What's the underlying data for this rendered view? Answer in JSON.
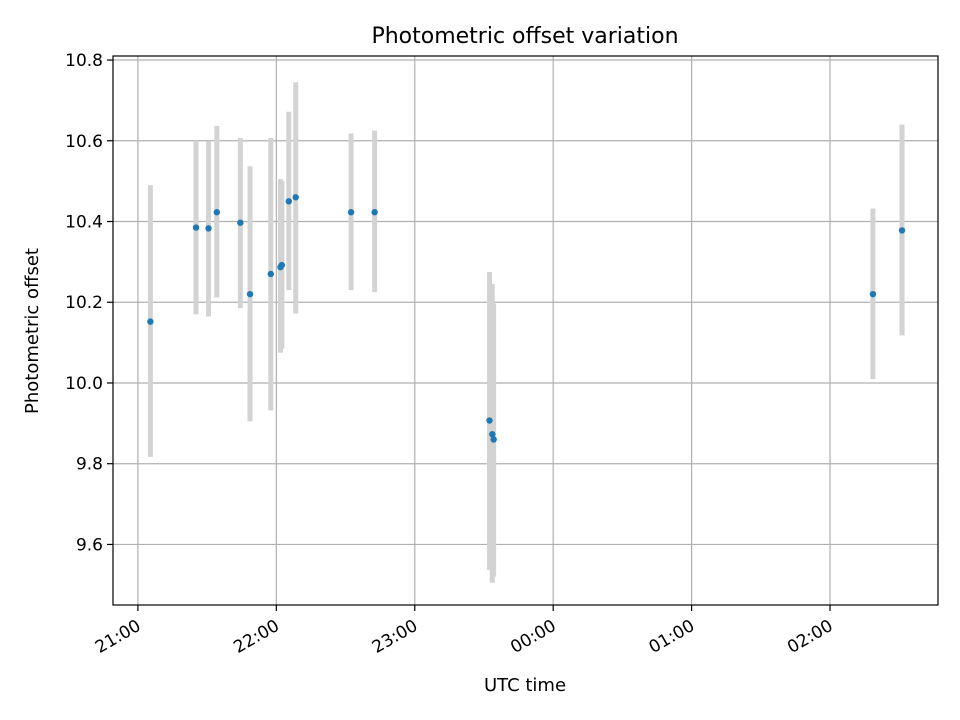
{
  "chart_data": {
    "type": "scatter",
    "title": "Photometric offset variation",
    "xlabel": "UTC time",
    "ylabel": "Photometric offset",
    "grid": true,
    "x_unit": "hours since 21:00 UTC",
    "xlim": [
      -0.18,
      5.78
    ],
    "ylim": [
      9.45,
      10.81
    ],
    "x_ticks": [
      {
        "value": 0,
        "label": "21:00"
      },
      {
        "value": 1,
        "label": "22:00"
      },
      {
        "value": 2,
        "label": "23:00"
      },
      {
        "value": 3,
        "label": "00:00"
      },
      {
        "value": 4,
        "label": "01:00"
      },
      {
        "value": 5,
        "label": "02:00"
      }
    ],
    "y_ticks": [
      {
        "value": 9.6,
        "label": "9.6"
      },
      {
        "value": 9.8,
        "label": "9.8"
      },
      {
        "value": 10.0,
        "label": "10.0"
      },
      {
        "value": 10.2,
        "label": "10.2"
      },
      {
        "value": 10.4,
        "label": "10.4"
      },
      {
        "value": 10.6,
        "label": "10.6"
      },
      {
        "value": 10.8,
        "label": "10.8"
      }
    ],
    "marker_color": "#1f77b4",
    "errorbar_color": "#d3d3d3",
    "series": [
      {
        "name": "offset",
        "points": [
          {
            "x": 0.09,
            "y": 10.152,
            "ylo": 9.817,
            "yhi": 10.49
          },
          {
            "x": 0.42,
            "y": 10.385,
            "ylo": 10.17,
            "yhi": 10.6
          },
          {
            "x": 0.51,
            "y": 10.383,
            "ylo": 10.165,
            "yhi": 10.598
          },
          {
            "x": 0.57,
            "y": 10.423,
            "ylo": 10.212,
            "yhi": 10.637
          },
          {
            "x": 0.74,
            "y": 10.397,
            "ylo": 10.185,
            "yhi": 10.607
          },
          {
            "x": 0.81,
            "y": 10.22,
            "ylo": 9.905,
            "yhi": 10.537
          },
          {
            "x": 0.96,
            "y": 10.27,
            "ylo": 9.932,
            "yhi": 10.607
          },
          {
            "x": 1.03,
            "y": 10.287,
            "ylo": 10.075,
            "yhi": 10.505
          },
          {
            "x": 1.04,
            "y": 10.292,
            "ylo": 10.085,
            "yhi": 10.5
          },
          {
            "x": 1.09,
            "y": 10.45,
            "ylo": 10.23,
            "yhi": 10.672
          },
          {
            "x": 1.14,
            "y": 10.46,
            "ylo": 10.172,
            "yhi": 10.745
          },
          {
            "x": 1.54,
            "y": 10.423,
            "ylo": 10.23,
            "yhi": 10.618
          },
          {
            "x": 1.71,
            "y": 10.423,
            "ylo": 10.225,
            "yhi": 10.625
          },
          {
            "x": 2.54,
            "y": 9.907,
            "ylo": 9.537,
            "yhi": 10.275
          },
          {
            "x": 2.56,
            "y": 9.873,
            "ylo": 9.505,
            "yhi": 10.245
          },
          {
            "x": 2.57,
            "y": 9.86,
            "ylo": 9.52,
            "yhi": 10.197
          },
          {
            "x": 5.31,
            "y": 10.22,
            "ylo": 10.01,
            "yhi": 10.432
          },
          {
            "x": 5.52,
            "y": 10.378,
            "ylo": 10.118,
            "yhi": 10.64
          }
        ]
      }
    ]
  }
}
